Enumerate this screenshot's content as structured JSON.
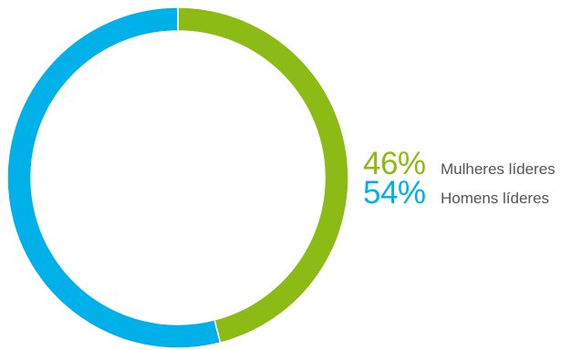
{
  "chart_data": {
    "type": "pie",
    "variant": "donut",
    "slices": [
      {
        "label": "Mulheres líderes",
        "value": 46,
        "display": "46%",
        "color": "#8cbb16"
      },
      {
        "label": "Homens líderes",
        "value": 54,
        "display": "54%",
        "color": "#00b0e8"
      }
    ],
    "start_angle": "top",
    "direction": "clockwise",
    "legend_position": "right"
  }
}
